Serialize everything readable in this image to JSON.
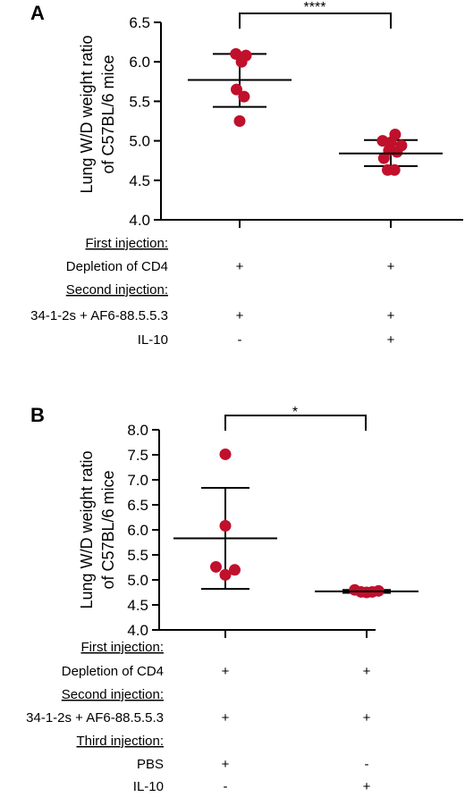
{
  "chart_data": [
    {
      "panel": "A",
      "type": "scatter",
      "ylabel_line1": "Lung W/D weight ratio",
      "ylabel_line2": "of C57BL/6 mice",
      "ylim": [
        4.0,
        6.5
      ],
      "yticks": [
        "4.0",
        "4.5",
        "5.0",
        "5.5",
        "6.0",
        "6.5"
      ],
      "significance": "****",
      "rows": [
        {
          "label": "First injection:",
          "underline": true,
          "values": [
            "",
            ""
          ]
        },
        {
          "label": "Depletion of CD4",
          "underline": false,
          "values": [
            "+",
            "+"
          ]
        },
        {
          "label": "Second injection:",
          "underline": true,
          "values": [
            "",
            ""
          ]
        },
        {
          "label": "34-1-2s + AF6-88.5.5.3",
          "underline": false,
          "values": [
            "+",
            "+"
          ]
        },
        {
          "label": "IL-10",
          "underline": false,
          "values": [
            "-",
            "+"
          ]
        }
      ],
      "groups": [
        {
          "mean": 5.77,
          "sd_upper": 6.1,
          "sd_lower": 5.43,
          "points": [
            {
              "dx": -0.3,
              "y": 6.1
            },
            {
              "dx": 0.5,
              "y": 6.08
            },
            {
              "dx": 0.15,
              "y": 6.0
            },
            {
              "dx": -0.25,
              "y": 5.65
            },
            {
              "dx": 0.35,
              "y": 5.56
            },
            {
              "dx": 0.0,
              "y": 5.25
            }
          ]
        },
        {
          "mean": 4.84,
          "sd_upper": 5.01,
          "sd_lower": 4.68,
          "points": [
            {
              "dx": -0.65,
              "y": 5.0
            },
            {
              "dx": 0.35,
              "y": 5.08
            },
            {
              "dx": 0.0,
              "y": 4.98
            },
            {
              "dx": 0.85,
              "y": 4.94
            },
            {
              "dx": -0.15,
              "y": 4.88
            },
            {
              "dx": 0.5,
              "y": 4.86
            },
            {
              "dx": -0.55,
              "y": 4.78
            },
            {
              "dx": -0.25,
              "y": 4.63
            },
            {
              "dx": 0.3,
              "y": 4.63
            }
          ]
        }
      ]
    },
    {
      "panel": "B",
      "type": "scatter",
      "ylabel_line1": "Lung W/D weight ratio",
      "ylabel_line2": "of C57BL/6 mice",
      "ylim": [
        4.0,
        8.0
      ],
      "yticks": [
        "4.0",
        "4.5",
        "5.0",
        "5.5",
        "6.0",
        "6.5",
        "7.0",
        "7.5",
        "8.0"
      ],
      "significance": "*",
      "rows": [
        {
          "label": "First injection:",
          "underline": true,
          "values": [
            "",
            ""
          ]
        },
        {
          "label": "Depletion of CD4",
          "underline": false,
          "values": [
            "+",
            "+"
          ]
        },
        {
          "label": "Second injection:",
          "underline": true,
          "values": [
            "",
            ""
          ]
        },
        {
          "label": "34-1-2s + AF6-88.5.5.3",
          "underline": false,
          "values": [
            "+",
            "+"
          ]
        },
        {
          "label": "Third injection:",
          "underline": true,
          "values": [
            "",
            ""
          ]
        },
        {
          "label": "PBS",
          "underline": false,
          "values": [
            "+",
            "-"
          ]
        },
        {
          "label": "IL-10",
          "underline": false,
          "values": [
            "-",
            "+"
          ]
        }
      ],
      "groups": [
        {
          "mean": 5.83,
          "sd_upper": 6.84,
          "sd_lower": 4.82,
          "points": [
            {
              "dx": 0.0,
              "y": 7.51
            },
            {
              "dx": 0.0,
              "y": 6.08
            },
            {
              "dx": -0.75,
              "y": 5.26
            },
            {
              "dx": 0.75,
              "y": 5.2
            },
            {
              "dx": 0.0,
              "y": 5.1
            }
          ]
        },
        {
          "mean": 4.77,
          "sd_upper": 4.8,
          "sd_lower": 4.74,
          "points": [
            {
              "dx": -0.95,
              "y": 4.8
            },
            {
              "dx": -0.45,
              "y": 4.76
            },
            {
              "dx": 0.0,
              "y": 4.75
            },
            {
              "dx": 0.45,
              "y": 4.76
            },
            {
              "dx": 0.95,
              "y": 4.78
            }
          ]
        }
      ]
    }
  ],
  "colors": {
    "point": "#c0102c",
    "line": "#000000"
  }
}
